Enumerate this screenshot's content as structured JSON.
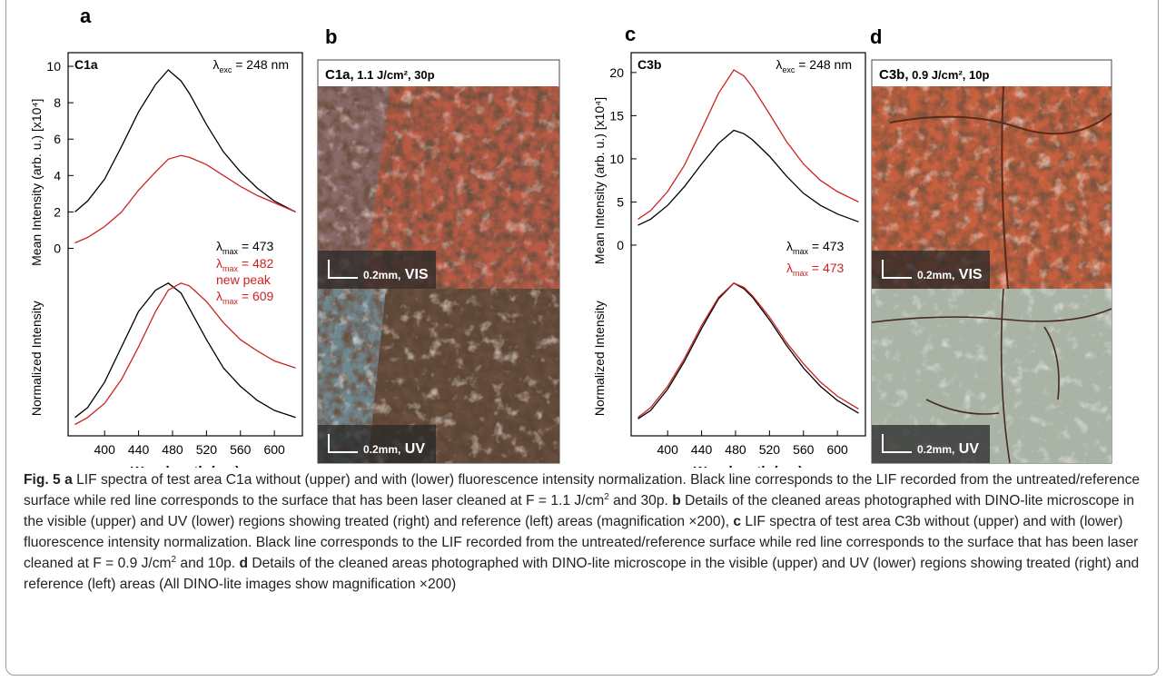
{
  "chart_data": [
    {
      "type": "line",
      "label": "a",
      "x_label": "Wavelength (nm)",
      "y_label": "Mean Intensity (arb. u.) [x10⁴]",
      "y2_label": "Normalized Intensity",
      "xlim": [
        357,
        633
      ],
      "xticks": [
        400,
        440,
        480,
        520,
        560,
        600
      ],
      "ylim": [
        -10.3,
        10.75
      ],
      "yticks": [
        0,
        2,
        4,
        6,
        8,
        10
      ],
      "y2lim": [
        -0.08,
        2.63
      ],
      "x": [
        365,
        380,
        400,
        420,
        440,
        460,
        475,
        490,
        500,
        520,
        540,
        560,
        580,
        600,
        625
      ],
      "series": [
        {
          "color": "#000000",
          "values": [
            2.0,
            2.6,
            3.8,
            5.6,
            7.5,
            9.0,
            9.8,
            9.2,
            8.5,
            6.8,
            5.3,
            4.2,
            3.3,
            2.6,
            2.0
          ]
        },
        {
          "color": "#cc2222",
          "values": [
            0.3,
            0.6,
            1.2,
            2.0,
            3.2,
            4.2,
            4.9,
            5.1,
            5.0,
            4.6,
            4.0,
            3.4,
            2.9,
            2.5,
            2.0
          ]
        },
        {
          "color": "#000000",
          "axis": "y2",
          "values": [
            0.05,
            0.12,
            0.3,
            0.55,
            0.8,
            0.95,
            1.0,
            0.93,
            0.82,
            0.6,
            0.4,
            0.27,
            0.17,
            0.1,
            0.05
          ]
        },
        {
          "color": "#cc2222",
          "axis": "y2",
          "values": [
            0.0,
            0.05,
            0.15,
            0.32,
            0.55,
            0.8,
            0.95,
            1.0,
            0.98,
            0.87,
            0.72,
            0.6,
            0.52,
            0.45,
            0.4
          ]
        }
      ],
      "annotations": [
        {
          "color": "#000000",
          "bold": true,
          "parts": [
            {
              "text": "C1a"
            }
          ]
        },
        {
          "color": "#000000",
          "parts": [
            {
              "text": "λ"
            },
            {
              "text": "exc",
              "sub": true
            },
            {
              "text": " = 248 nm"
            }
          ]
        },
        {
          "color": "#000000",
          "parts": [
            {
              "text": "λ"
            },
            {
              "text": "max",
              "sub": true
            },
            {
              "text": " = 473"
            }
          ]
        },
        {
          "color": "#cc2222",
          "parts": [
            {
              "text": "λ"
            },
            {
              "text": "max",
              "sub": true
            },
            {
              "text": " = 482"
            }
          ]
        },
        {
          "color": "#cc2222",
          "parts": [
            {
              "text": "new peak"
            }
          ]
        },
        {
          "color": "#cc2222",
          "parts": [
            {
              "text": "λ"
            },
            {
              "text": "max",
              "sub": true
            },
            {
              "text": " = 609"
            }
          ]
        }
      ]
    },
    {
      "type": "line",
      "label": "c",
      "x_label": "Wavelength (nm)",
      "y_label": "Mean Intensity (arb. u.) [x10⁴]",
      "y2_label": "Normalized Intensity",
      "xlim": [
        357,
        633
      ],
      "xticks": [
        400,
        440,
        480,
        520,
        560,
        600
      ],
      "ylim": [
        -22.1,
        22.3
      ],
      "yticks": [
        0,
        5,
        10,
        15,
        20
      ],
      "y2lim": [
        -0.08,
        2.63
      ],
      "x": [
        365,
        380,
        400,
        420,
        440,
        460,
        478,
        490,
        500,
        520,
        540,
        560,
        580,
        600,
        625
      ],
      "series": [
        {
          "color": "#000000",
          "values": [
            2.3,
            3.0,
            4.6,
            6.8,
            9.4,
            11.8,
            13.3,
            12.9,
            12.2,
            10.3,
            8.0,
            6.0,
            4.6,
            3.6,
            2.7
          ]
        },
        {
          "color": "#cc2222",
          "values": [
            3.0,
            4.0,
            6.2,
            9.3,
            13.4,
            17.6,
            20.3,
            19.6,
            18.3,
            15.2,
            12.0,
            9.4,
            7.5,
            6.2,
            5.0
          ]
        },
        {
          "color": "#000000",
          "axis": "y2",
          "values": [
            0.04,
            0.1,
            0.25,
            0.45,
            0.68,
            0.89,
            1.0,
            0.96,
            0.9,
            0.74,
            0.56,
            0.4,
            0.27,
            0.17,
            0.08
          ]
        },
        {
          "color": "#cc2222",
          "axis": "y2",
          "values": [
            0.05,
            0.12,
            0.27,
            0.47,
            0.7,
            0.9,
            1.0,
            0.97,
            0.91,
            0.76,
            0.58,
            0.43,
            0.3,
            0.2,
            0.11
          ]
        }
      ],
      "annotations": [
        {
          "color": "#000000",
          "bold": true,
          "parts": [
            {
              "text": "C3b"
            }
          ]
        },
        {
          "color": "#000000",
          "parts": [
            {
              "text": "λ"
            },
            {
              "text": "exc",
              "sub": true
            },
            {
              "text": " = 248 nm"
            }
          ]
        },
        {
          "color": "#000000",
          "parts": [
            {
              "text": "λ"
            },
            {
              "text": "max",
              "sub": true
            },
            {
              "text": " = 473"
            }
          ]
        },
        {
          "color": "#cc2222",
          "parts": [
            {
              "text": "λ"
            },
            {
              "text": "max",
              "sub": true
            },
            {
              "text": " = 473"
            }
          ]
        }
      ]
    }
  ],
  "photos": [
    {
      "label": "b",
      "title": "C1a,",
      "title_detail": " 1.1 J/cm², 30p",
      "views": [
        {
          "scale": "0.2mm,",
          "mode": " VIS"
        },
        {
          "scale": "0.2mm,",
          "mode": " UV"
        }
      ]
    },
    {
      "label": "d",
      "title": "C3b,",
      "title_detail": " 0.9 J/cm², 10p",
      "views": [
        {
          "scale": "0.2mm,",
          "mode": " VIS"
        },
        {
          "scale": "0.2mm,",
          "mode": " UV"
        }
      ]
    }
  ],
  "caption": [
    {
      "text": "Fig. 5 ",
      "style": "bold"
    },
    {
      "text": " a",
      "style": "bold"
    },
    {
      "text": " LIF spectra of test area C1a without (upper) and with (lower) fluorescence intensity normalization. Black line corresponds to the LIF recorded from the untreated/reference surface while red line corresponds to the surface that has been laser cleaned at F = 1.1 J/cm"
    },
    {
      "text": "2",
      "style": "sup"
    },
    {
      "text": " and 30p. "
    },
    {
      "text": "b",
      "style": "bold"
    },
    {
      "text": " Details of the cleaned areas photographed with DINO-lite microscope in the visible (upper) and UV (lower) regions showing treated (right) and reference (left) areas (magnification ×200), "
    },
    {
      "text": "c",
      "style": "bold"
    },
    {
      "text": " LIF spectra of test area C3b without (upper) and with (lower) fluorescence intensity normalization. Black line corresponds to the LIF recorded from the untreated/reference surface while red line corresponds to the surface that has been laser cleaned at F = 0.9 J/cm"
    },
    {
      "text": "2",
      "style": "sup"
    },
    {
      "text": " and 10p. "
    },
    {
      "text": "d",
      "style": "bold"
    },
    {
      "text": " Details of the cleaned areas photographed with DINO-lite microscope in the visible (upper) and UV (lower) regions showing treated (right) and reference (left) areas (All DINO-lite images show magnification ×200)"
    }
  ]
}
